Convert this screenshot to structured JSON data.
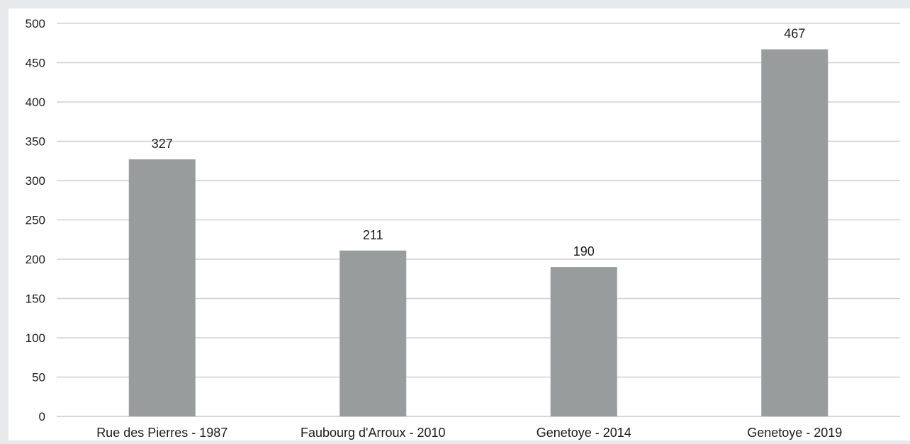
{
  "chart_data": {
    "type": "bar",
    "title": "",
    "xlabel": "",
    "ylabel": "",
    "categories": [
      "Rue des Pierres - 1987",
      "Faubourg d'Arroux - 2010",
      "Genetoye - 2014",
      "Genetoye - 2019"
    ],
    "values": [
      327,
      211,
      190,
      467
    ],
    "data_labels": [
      "327",
      "211",
      "190",
      "467"
    ],
    "ylim": [
      0,
      500
    ],
    "yticks": [
      0,
      50,
      100,
      150,
      200,
      250,
      300,
      350,
      400,
      450,
      500
    ],
    "ytick_labels": [
      "0",
      "50",
      "100",
      "150",
      "200",
      "250",
      "300",
      "350",
      "400",
      "450",
      "500"
    ],
    "grid": true,
    "legend": "none",
    "bar_color": "#999c9c",
    "background_color": "#e8e9ea"
  }
}
